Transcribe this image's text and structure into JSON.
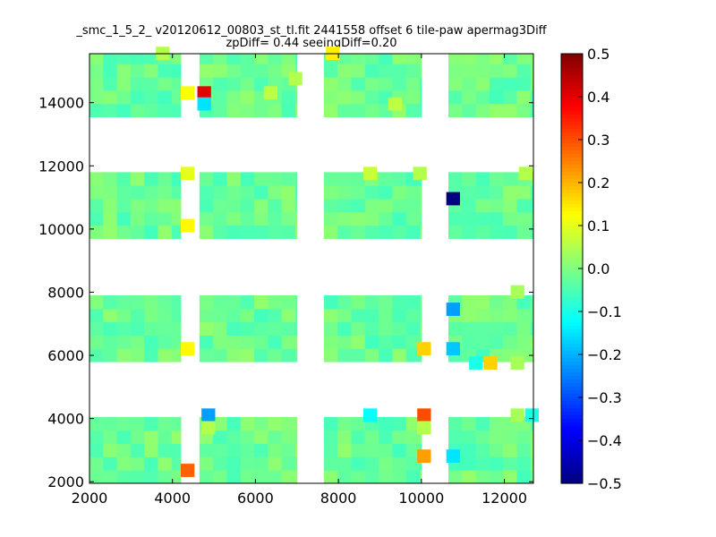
{
  "chart_data": {
    "type": "heatmap",
    "title_lines": [
      "_smc_1_5_2_ v20120612_00803_st_tl.fit 2441558 offset 6 tile-paw apermag3Diff",
      "zpDiff= 0.44 seeingDiff=0.20"
    ],
    "xlabel": "",
    "ylabel": "",
    "xlim": [
      2000,
      12700
    ],
    "ylim": [
      1950,
      15550
    ],
    "xticks": [
      "2000",
      "4000",
      "6000",
      "8000",
      "10000",
      "12000"
    ],
    "yticks": [
      "2000",
      "4000",
      "6000",
      "8000",
      "10000",
      "12000",
      "14000"
    ],
    "colorbar": {
      "colormap": "jet",
      "vmin": -0.5,
      "vmax": 0.5,
      "ticks": [
        "0.5",
        "0.4",
        "0.3",
        "0.2",
        "0.1",
        "0.0",
        "−0.1",
        "−0.2",
        "−0.3",
        "−0.4",
        "−0.5"
      ]
    },
    "grid": false,
    "cell_size": {
      "dx": 330,
      "dy": 420
    },
    "columns": [
      {
        "x0": 2000,
        "x1": 4200
      },
      {
        "x0": 4650,
        "x1": 7000
      },
      {
        "x0": 7650,
        "x1": 10000
      },
      {
        "x0": 10650,
        "x1": 12700
      }
    ],
    "rows": [
      {
        "y0": 1950,
        "y1": 4050
      },
      {
        "y0": 5800,
        "y1": 7900
      },
      {
        "y0": 9700,
        "y1": 11800
      },
      {
        "y0": 13550,
        "y1": 15550
      }
    ],
    "background_value": -0.02,
    "cells": [
      {
        "x": 4200,
        "y": 14100,
        "value": 0.12
      },
      {
        "x": 4600,
        "y": 14100,
        "value": 0.4
      },
      {
        "x": 4600,
        "y": 13750,
        "value": -0.15
      },
      {
        "x": 7700,
        "y": 15350,
        "value": 0.14
      },
      {
        "x": 9200,
        "y": 13750,
        "value": 0.06
      },
      {
        "x": 6200,
        "y": 14100,
        "value": 0.06
      },
      {
        "x": 6800,
        "y": 14550,
        "value": 0.05
      },
      {
        "x": 3600,
        "y": 15350,
        "value": 0.05
      },
      {
        "x": 4200,
        "y": 11550,
        "value": 0.1
      },
      {
        "x": 8600,
        "y": 11550,
        "value": 0.07
      },
      {
        "x": 9800,
        "y": 11550,
        "value": 0.05
      },
      {
        "x": 12350,
        "y": 11550,
        "value": 0.05
      },
      {
        "x": 4200,
        "y": 9900,
        "value": 0.13
      },
      {
        "x": 10600,
        "y": 10750,
        "value": -0.5
      },
      {
        "x": 4200,
        "y": 6000,
        "value": 0.13
      },
      {
        "x": 9900,
        "y": 6000,
        "value": 0.17
      },
      {
        "x": 10600,
        "y": 7250,
        "value": -0.22
      },
      {
        "x": 10600,
        "y": 6000,
        "value": -0.18
      },
      {
        "x": 11150,
        "y": 5550,
        "value": -0.1
      },
      {
        "x": 11500,
        "y": 5550,
        "value": 0.17
      },
      {
        "x": 12150,
        "y": 5550,
        "value": 0.04
      },
      {
        "x": 12150,
        "y": 7800,
        "value": 0.04
      },
      {
        "x": 4700,
        "y": 3900,
        "value": -0.22
      },
      {
        "x": 4700,
        "y": 3500,
        "value": 0.05
      },
      {
        "x": 8600,
        "y": 3900,
        "value": -0.12
      },
      {
        "x": 9900,
        "y": 3900,
        "value": 0.3
      },
      {
        "x": 9900,
        "y": 3500,
        "value": 0.05
      },
      {
        "x": 9900,
        "y": 2600,
        "value": 0.22
      },
      {
        "x": 10600,
        "y": 2600,
        "value": -0.15
      },
      {
        "x": 4200,
        "y": 2150,
        "value": 0.28
      },
      {
        "x": 12500,
        "y": 3900,
        "value": -0.1
      },
      {
        "x": 12150,
        "y": 3900,
        "value": 0.04
      }
    ]
  }
}
